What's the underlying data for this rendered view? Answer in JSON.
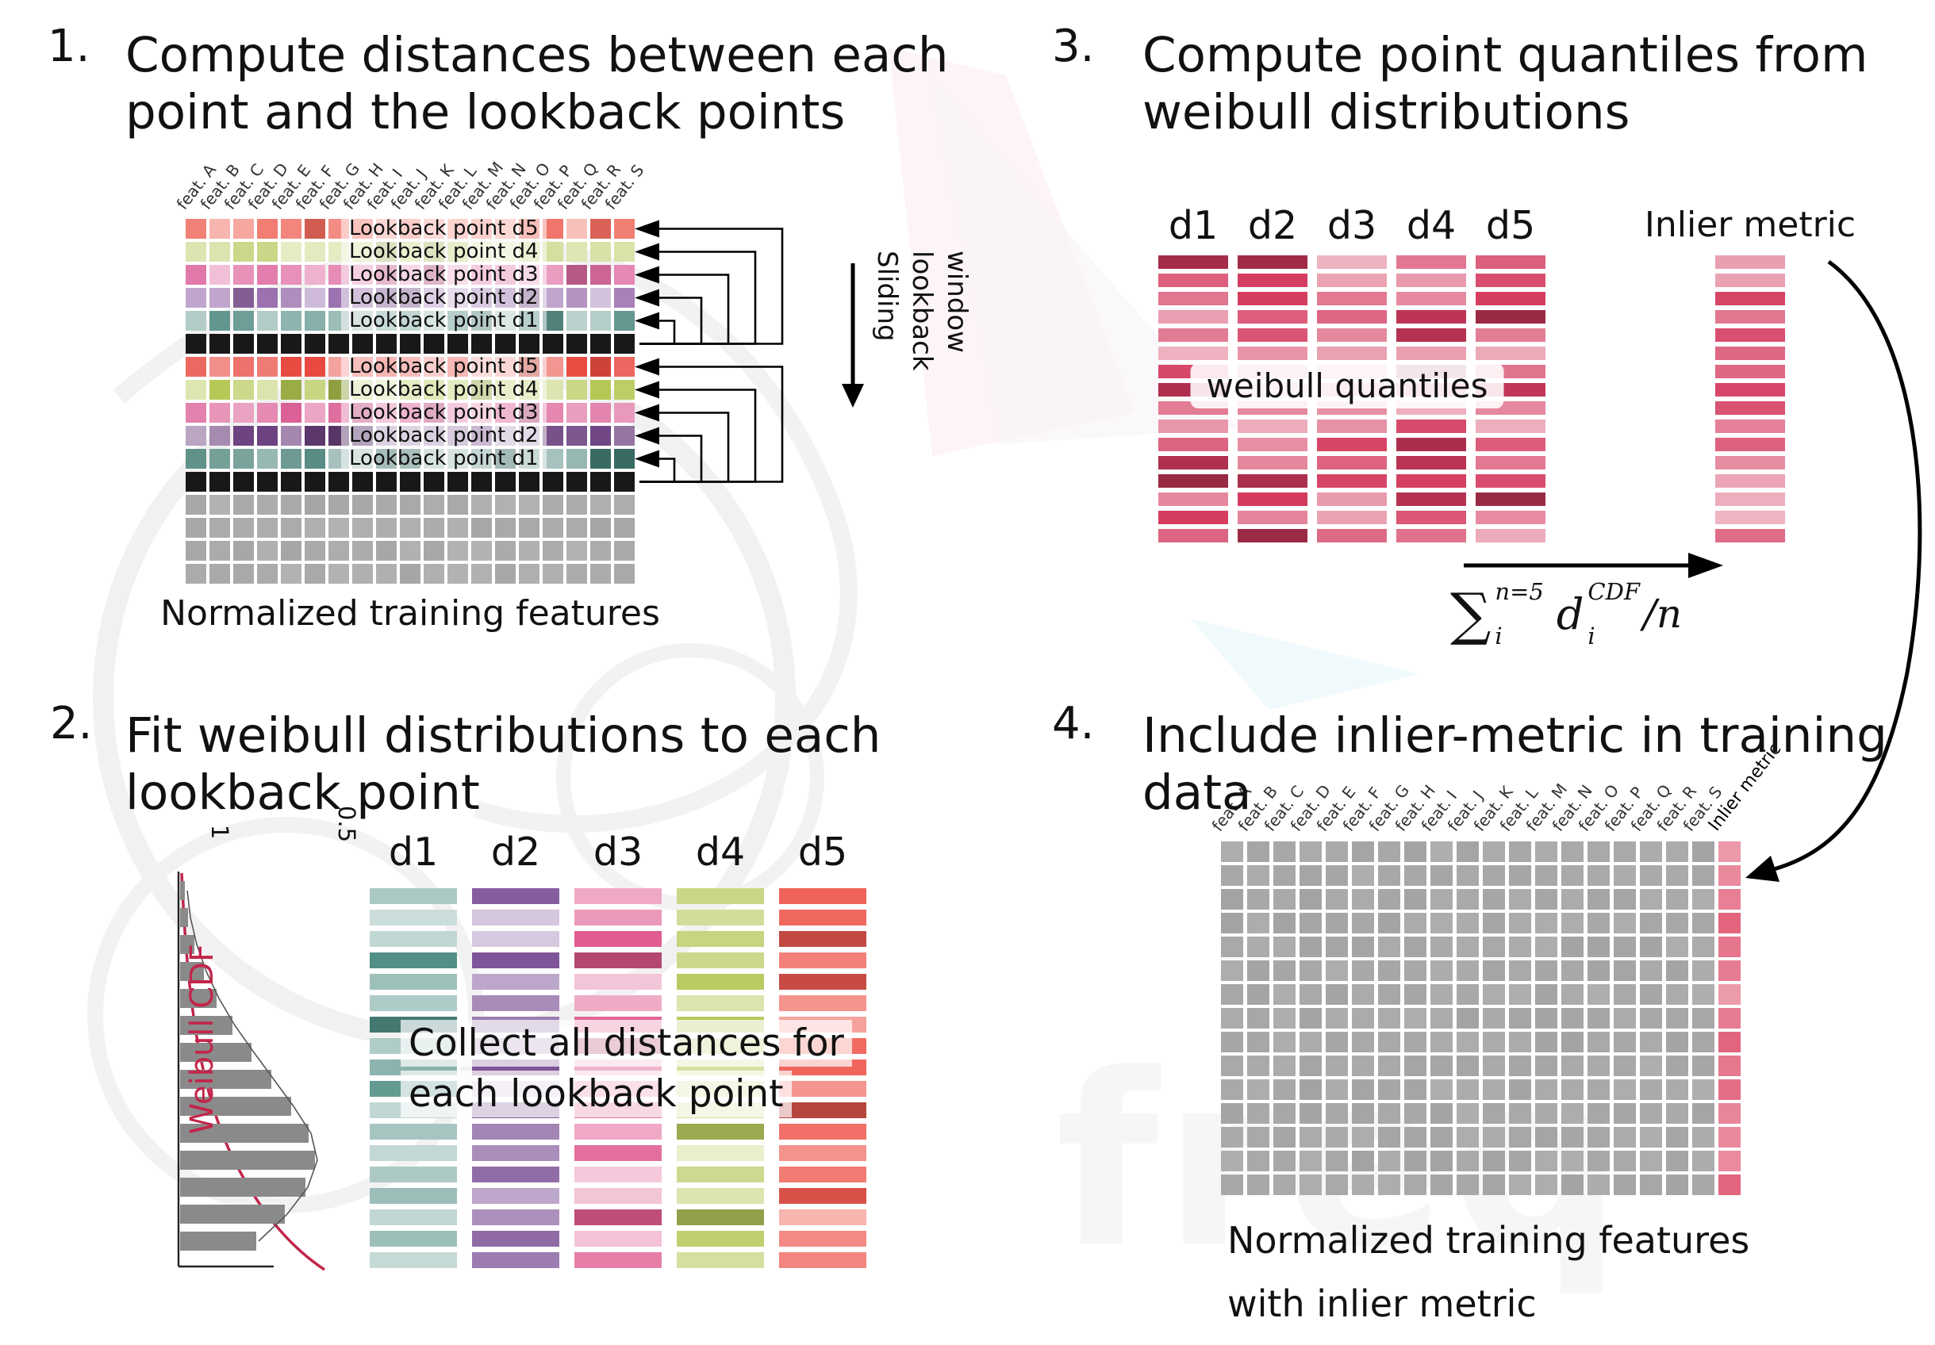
{
  "watermark": {
    "text": "freq"
  },
  "panel1": {
    "number": "1.",
    "title_line1": "Compute distances between each",
    "title_line2": "point and the lookback points",
    "caption": "Normalized training features",
    "sliding_lines": [
      "Sliding",
      "lookback",
      "window"
    ],
    "features": [
      "feat. A",
      "feat. B",
      "feat. C",
      "feat. D",
      "feat. E",
      "feat. F",
      "feat. G",
      "feat. H",
      "feat. I",
      "feat. J",
      "feat. K",
      "feat. L",
      "feat. M",
      "feat. N",
      "feat. O",
      "feat. P",
      "feat. Q",
      "feat. R",
      "feat. S"
    ],
    "grid_cols": 19,
    "rows": [
      {
        "kind": "lookback",
        "label": "Lookback point d5",
        "color": "#ef6a5e"
      },
      {
        "kind": "lookback",
        "label": "Lookback point d4",
        "color": "#ccd687"
      },
      {
        "kind": "lookback",
        "label": "Lookback point d3",
        "color": "#e06ea4"
      },
      {
        "kind": "lookback",
        "label": "Lookback point d2",
        "color": "#9a6fae"
      },
      {
        "kind": "lookback",
        "label": "Lookback point d1",
        "color": "#5f958d"
      },
      {
        "kind": "current",
        "color": "#181818"
      },
      {
        "kind": "lookback",
        "label": "Lookback point d5",
        "color": "#e84a41"
      },
      {
        "kind": "lookback",
        "label": "Lookback point d4",
        "color": "#b2c64f"
      },
      {
        "kind": "lookback",
        "label": "Lookback point d3",
        "color": "#d9538f"
      },
      {
        "kind": "lookback",
        "label": "Lookback point d2",
        "color": "#6d4180"
      },
      {
        "kind": "lookback",
        "label": "Lookback point d1",
        "color": "#437d73"
      },
      {
        "kind": "current",
        "color": "#181818"
      },
      {
        "kind": "plain",
        "color": "#a6a6a6"
      },
      {
        "kind": "plain",
        "color": "#a6a6a6"
      },
      {
        "kind": "plain",
        "color": "#a6a6a6"
      },
      {
        "kind": "plain",
        "color": "#a6a6a6"
      }
    ]
  },
  "panel2": {
    "number": "2.",
    "title_line1": "Fit weibull distributions to each",
    "title_line2": "lookback point",
    "plot": {
      "ylabel": "Weibull CDF",
      "tick_1": "1",
      "tick_05": "0.5",
      "bar_color": "#8a8a8a",
      "cdf_color": "#c2254a",
      "bar_lengths": [
        6,
        10,
        18,
        30,
        46,
        66,
        90,
        115,
        140,
        162,
        170,
        158,
        132,
        96
      ]
    },
    "columns": [
      {
        "name": "d1",
        "color": "#4f8d84"
      },
      {
        "name": "d2",
        "color": "#7b5096"
      },
      {
        "name": "d3",
        "color": "#e0598f"
      },
      {
        "name": "d4",
        "color": "#b8c95e"
      },
      {
        "name": "d5",
        "color": "#ef5a50"
      }
    ],
    "bars_per_column": 18,
    "overlay_line1": "Collect all distances for",
    "overlay_line2": "each lookback point"
  },
  "panel3": {
    "number": "3.",
    "title_line1": "Compute point quantiles from",
    "title_line2": "weibull distributions",
    "columns": [
      "d1",
      "d2",
      "d3",
      "d4",
      "d5"
    ],
    "bar_color": "#d43a5e",
    "bars_per_column": 16,
    "quantile_label": "weibull quantiles",
    "inlier_label": "Inlier metric",
    "formula": {
      "sum": "∑",
      "sum_sup": "n=5",
      "sum_sub": "i",
      "var": "d",
      "var_sup": "CDF",
      "var_sub": "i",
      "tail": "/n"
    }
  },
  "panel4": {
    "number": "4.",
    "title_line1": "Include inlier-metric in training",
    "title_line2": "data",
    "features": [
      "feat. A",
      "feat. B",
      "feat. C",
      "feat. D",
      "feat. E",
      "feat. F",
      "feat. G",
      "feat. H",
      "feat. I",
      "feat. J",
      "feat. K",
      "feat. L",
      "feat. M",
      "feat. N",
      "feat. O",
      "feat. P",
      "feat. Q",
      "feat. R",
      "feat. S",
      "Inlier metric"
    ],
    "grid_cols": 20,
    "grid_rows": 15,
    "cell_color": "#a3a3a3",
    "inlier_color": "#df5570",
    "caption_line1": "Normalized training features",
    "caption_line2": "with inlier metric"
  }
}
